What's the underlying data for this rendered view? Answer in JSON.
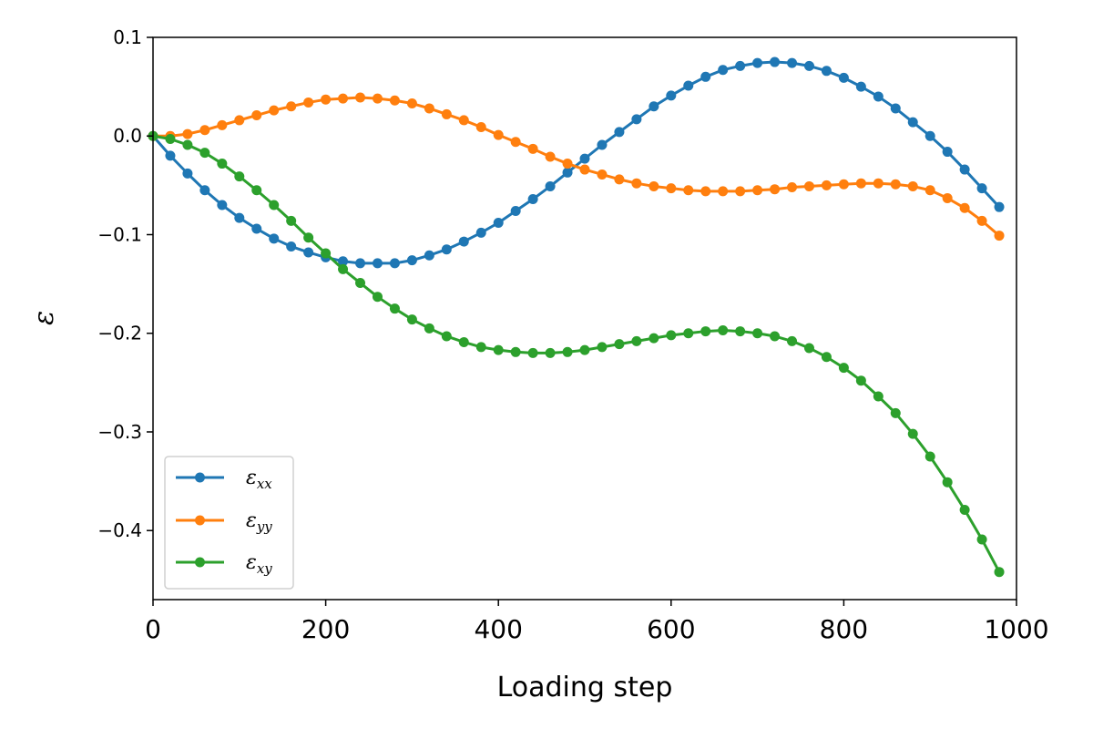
{
  "chart_data": {
    "type": "line",
    "xlabel": "Loading step",
    "ylabel": "ε",
    "xlim": [
      0,
      1000
    ],
    "ylim": [
      -0.47,
      0.1
    ],
    "xticks": [
      0,
      200,
      400,
      600,
      800,
      1000
    ],
    "xtick_labels": [
      "0",
      "200",
      "400",
      "600",
      "800",
      "1000"
    ],
    "yticks": [
      0.1,
      0.0,
      -0.1,
      -0.2,
      -0.3,
      -0.4
    ],
    "ytick_labels": [
      "0.1",
      "0.0",
      "−0.1",
      "−0.2",
      "−0.3",
      "−0.4"
    ],
    "grid": false,
    "legend_position": "bottom-left",
    "x": [
      0,
      20,
      40,
      60,
      80,
      100,
      120,
      140,
      160,
      180,
      200,
      220,
      240,
      260,
      280,
      300,
      320,
      340,
      360,
      380,
      400,
      420,
      440,
      460,
      480,
      500,
      520,
      540,
      560,
      580,
      600,
      620,
      640,
      660,
      680,
      700,
      720,
      740,
      760,
      780,
      800,
      820,
      840,
      860,
      880,
      900,
      920,
      940,
      960,
      980
    ],
    "series": [
      {
        "name": "ε",
        "subscript": "xx",
        "color": "#1f77b4",
        "values": [
          0.0,
          -0.02,
          -0.038,
          -0.055,
          -0.07,
          -0.083,
          -0.094,
          -0.104,
          -0.112,
          -0.118,
          -0.123,
          -0.127,
          -0.129,
          -0.129,
          -0.129,
          -0.126,
          -0.121,
          -0.115,
          -0.107,
          -0.098,
          -0.088,
          -0.076,
          -0.064,
          -0.051,
          -0.037,
          -0.023,
          -0.009,
          0.004,
          0.017,
          0.03,
          0.041,
          0.051,
          0.06,
          0.067,
          0.071,
          0.074,
          0.075,
          0.074,
          0.071,
          0.066,
          0.059,
          0.05,
          0.04,
          0.028,
          0.014,
          0.0,
          -0.016,
          -0.034,
          -0.053,
          -0.072
        ]
      },
      {
        "name": "ε",
        "subscript": "yy",
        "color": "#ff7f0e",
        "values": [
          0.0,
          0.0,
          0.002,
          0.006,
          0.011,
          0.016,
          0.021,
          0.026,
          0.03,
          0.034,
          0.037,
          0.038,
          0.039,
          0.038,
          0.036,
          0.033,
          0.028,
          0.022,
          0.016,
          0.009,
          0.001,
          -0.006,
          -0.013,
          -0.021,
          -0.028,
          -0.034,
          -0.039,
          -0.044,
          -0.048,
          -0.051,
          -0.053,
          -0.055,
          -0.056,
          -0.056,
          -0.056,
          -0.055,
          -0.054,
          -0.052,
          -0.051,
          -0.05,
          -0.049,
          -0.048,
          -0.048,
          -0.049,
          -0.051,
          -0.055,
          -0.063,
          -0.073,
          -0.086,
          -0.101
        ]
      },
      {
        "name": "ε",
        "subscript": "xy",
        "color": "#2ca02c",
        "values": [
          0.0,
          -0.003,
          -0.009,
          -0.017,
          -0.028,
          -0.041,
          -0.055,
          -0.07,
          -0.086,
          -0.103,
          -0.119,
          -0.135,
          -0.149,
          -0.163,
          -0.175,
          -0.186,
          -0.195,
          -0.203,
          -0.209,
          -0.214,
          -0.217,
          -0.219,
          -0.22,
          -0.22,
          -0.219,
          -0.217,
          -0.214,
          -0.211,
          -0.208,
          -0.205,
          -0.202,
          -0.2,
          -0.198,
          -0.197,
          -0.198,
          -0.2,
          -0.203,
          -0.208,
          -0.215,
          -0.224,
          -0.235,
          -0.248,
          -0.264,
          -0.281,
          -0.302,
          -0.325,
          -0.351,
          -0.379,
          -0.409,
          -0.442
        ]
      }
    ]
  }
}
